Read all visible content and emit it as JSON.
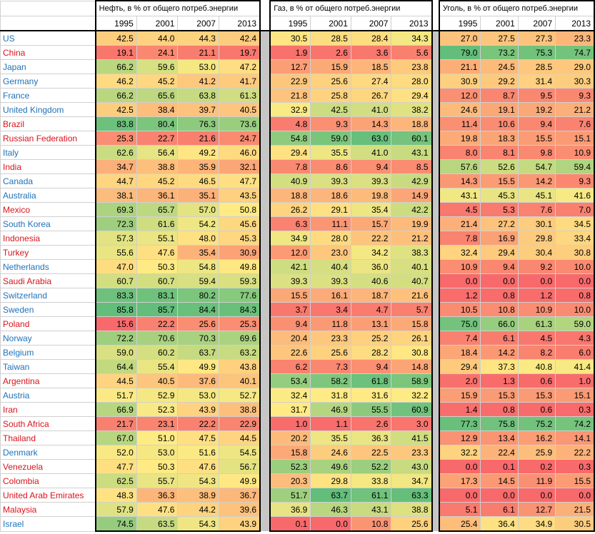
{
  "groups": [
    {
      "title": "Нефть, в % от общего потреб.энергии",
      "years": [
        "1995",
        "2001",
        "2007",
        "2013"
      ]
    },
    {
      "title": "Газ, в % от общего потреб.энергии",
      "years": [
        "1995",
        "2001",
        "2007",
        "2013"
      ]
    },
    {
      "title": "Уголь, в % от общего потреб.энергии",
      "years": [
        "1995",
        "2001",
        "2007",
        "2013"
      ]
    }
  ],
  "colors": {
    "blue": "#1f72b8",
    "red": "#d8141c",
    "scale_low": "#f8696b",
    "scale_mid": "#ffeb84",
    "scale_high": "#63be7b"
  },
  "rows": [
    {
      "country": "US",
      "color": "blue",
      "oil": [
        "42.5",
        "44.0",
        "44.3",
        "42.4"
      ],
      "gas": [
        "30.5",
        "28.5",
        "28.4",
        "34.3"
      ],
      "coal": [
        "27.0",
        "27.5",
        "27.3",
        "23.3"
      ]
    },
    {
      "country": "China",
      "color": "red",
      "oil": [
        "19.1",
        "24.1",
        "21.1",
        "19.7"
      ],
      "gas": [
        "1.9",
        "2.6",
        "3.6",
        "5.6"
      ],
      "coal": [
        "79.0",
        "73.2",
        "75.3",
        "74.7"
      ]
    },
    {
      "country": "Japan",
      "color": "blue",
      "oil": [
        "66.2",
        "59.6",
        "53.0",
        "47.2"
      ],
      "gas": [
        "12.7",
        "15.9",
        "18.5",
        "23.8"
      ],
      "coal": [
        "21.1",
        "24.5",
        "28.5",
        "29.0"
      ]
    },
    {
      "country": "Germany",
      "color": "blue",
      "oil": [
        "46.2",
        "45.2",
        "41.2",
        "41.7"
      ],
      "gas": [
        "22.9",
        "25.6",
        "27.4",
        "28.0"
      ],
      "coal": [
        "30.9",
        "29.2",
        "31.4",
        "30.3"
      ]
    },
    {
      "country": "France",
      "color": "blue",
      "oil": [
        "66.2",
        "65.6",
        "63.8",
        "61.3"
      ],
      "gas": [
        "21.8",
        "25.8",
        "26.7",
        "29.4"
      ],
      "coal": [
        "12.0",
        "8.7",
        "9.5",
        "9.3"
      ]
    },
    {
      "country": "United Kingdom",
      "color": "blue",
      "oil": [
        "42.5",
        "38.4",
        "39.7",
        "40.5"
      ],
      "gas": [
        "32.9",
        "42.5",
        "41.0",
        "38.2"
      ],
      "coal": [
        "24.6",
        "19.1",
        "19.2",
        "21.2"
      ]
    },
    {
      "country": "Brazil",
      "color": "red",
      "oil": [
        "83.8",
        "80.4",
        "76.3",
        "73.6"
      ],
      "gas": [
        "4.8",
        "9.3",
        "14.3",
        "18.8"
      ],
      "coal": [
        "11.4",
        "10.6",
        "9.4",
        "7.6"
      ]
    },
    {
      "country": "Russian Federation",
      "color": "red",
      "oil": [
        "25.3",
        "22.7",
        "21.6",
        "24.7"
      ],
      "gas": [
        "54.8",
        "59.0",
        "63.0",
        "60.1"
      ],
      "coal": [
        "19.8",
        "18.3",
        "15.5",
        "15.1"
      ]
    },
    {
      "country": "Italy",
      "color": "blue",
      "oil": [
        "62.6",
        "56.4",
        "49.2",
        "46.0"
      ],
      "gas": [
        "29.4",
        "35.5",
        "41.0",
        "43.1"
      ],
      "coal": [
        "8.0",
        "8.1",
        "9.8",
        "10.9"
      ]
    },
    {
      "country": "India",
      "color": "red",
      "oil": [
        "34.7",
        "38.8",
        "35.9",
        "32.1"
      ],
      "gas": [
        "7.8",
        "8.6",
        "9.4",
        "8.5"
      ],
      "coal": [
        "57.6",
        "52.6",
        "54.7",
        "59.4"
      ]
    },
    {
      "country": "Canada",
      "color": "blue",
      "oil": [
        "44.7",
        "45.2",
        "46.5",
        "47.7"
      ],
      "gas": [
        "40.9",
        "39.3",
        "39.3",
        "42.9"
      ],
      "coal": [
        "14.3",
        "15.5",
        "14.2",
        "9.3"
      ]
    },
    {
      "country": "Australia",
      "color": "blue",
      "oil": [
        "38.1",
        "36.1",
        "35.1",
        "43.5"
      ],
      "gas": [
        "18.8",
        "18.6",
        "19.8",
        "14.9"
      ],
      "coal": [
        "43.1",
        "45.3",
        "45.1",
        "41.6"
      ]
    },
    {
      "country": "Mexico",
      "color": "red",
      "oil": [
        "69.3",
        "65.7",
        "57.0",
        "50.8"
      ],
      "gas": [
        "26.2",
        "29.1",
        "35.4",
        "42.2"
      ],
      "coal": [
        "4.5",
        "5.3",
        "7.6",
        "7.0"
      ]
    },
    {
      "country": "South Korea",
      "color": "blue",
      "oil": [
        "72.3",
        "61.6",
        "54.2",
        "45.6"
      ],
      "gas": [
        "6.3",
        "11.1",
        "15.7",
        "19.9"
      ],
      "coal": [
        "21.4",
        "27.2",
        "30.1",
        "34.5"
      ]
    },
    {
      "country": "Indonesia",
      "color": "red",
      "oil": [
        "57.3",
        "55.1",
        "48.0",
        "45.3"
      ],
      "gas": [
        "34.9",
        "28.0",
        "22.2",
        "21.2"
      ],
      "coal": [
        "7.8",
        "16.9",
        "29.8",
        "33.4"
      ]
    },
    {
      "country": "Turkey",
      "color": "red",
      "oil": [
        "55.6",
        "47.6",
        "35.4",
        "30.9"
      ],
      "gas": [
        "12.0",
        "23.0",
        "34.2",
        "38.3"
      ],
      "coal": [
        "32.4",
        "29.4",
        "30.4",
        "30.8"
      ]
    },
    {
      "country": "Netherlands",
      "color": "blue",
      "oil": [
        "47.0",
        "50.3",
        "54.8",
        "49.8"
      ],
      "gas": [
        "42.1",
        "40.4",
        "36.0",
        "40.1"
      ],
      "coal": [
        "10.9",
        "9.4",
        "9.2",
        "10.0"
      ]
    },
    {
      "country": "Saudi Arabia",
      "color": "red",
      "oil": [
        "60.7",
        "60.7",
        "59.4",
        "59.3"
      ],
      "gas": [
        "39.3",
        "39.3",
        "40.6",
        "40.7"
      ],
      "coal": [
        "0.0",
        "0.0",
        "0.0",
        "0.0"
      ]
    },
    {
      "country": "Switzerland",
      "color": "blue",
      "oil": [
        "83.3",
        "83.1",
        "80.2",
        "77.6"
      ],
      "gas": [
        "15.5",
        "16.1",
        "18.7",
        "21.6"
      ],
      "coal": [
        "1.2",
        "0.8",
        "1.2",
        "0.8"
      ]
    },
    {
      "country": "Sweden",
      "color": "blue",
      "oil": [
        "85.8",
        "85.7",
        "84.4",
        "84.3"
      ],
      "gas": [
        "3.7",
        "3.4",
        "4.7",
        "5.7"
      ],
      "coal": [
        "10.5",
        "10.8",
        "10.9",
        "10.0"
      ]
    },
    {
      "country": "Poland",
      "color": "red",
      "oil": [
        "15.6",
        "22.2",
        "25.6",
        "25.3"
      ],
      "gas": [
        "9.4",
        "11.8",
        "13.1",
        "15.8"
      ],
      "coal": [
        "75.0",
        "66.0",
        "61.3",
        "59.0"
      ]
    },
    {
      "country": "Norway",
      "color": "blue",
      "oil": [
        "72.2",
        "70.6",
        "70.3",
        "69.6"
      ],
      "gas": [
        "20.4",
        "23.3",
        "25.2",
        "26.1"
      ],
      "coal": [
        "7.4",
        "6.1",
        "4.5",
        "4.3"
      ]
    },
    {
      "country": "Belgium",
      "color": "blue",
      "oil": [
        "59.0",
        "60.2",
        "63.7",
        "63.2"
      ],
      "gas": [
        "22.6",
        "25.6",
        "28.2",
        "30.8"
      ],
      "coal": [
        "18.4",
        "14.2",
        "8.2",
        "6.0"
      ]
    },
    {
      "country": "Taiwan",
      "color": "blue",
      "oil": [
        "64.4",
        "55.4",
        "49.9",
        "43.8"
      ],
      "gas": [
        "6.2",
        "7.3",
        "9.4",
        "14.8"
      ],
      "coal": [
        "29.4",
        "37.3",
        "40.8",
        "41.4"
      ]
    },
    {
      "country": "Argentina",
      "color": "red",
      "oil": [
        "44.5",
        "40.5",
        "37.6",
        "40.1"
      ],
      "gas": [
        "53.4",
        "58.2",
        "61.8",
        "58.9"
      ],
      "coal": [
        "2.0",
        "1.3",
        "0.6",
        "1.0"
      ]
    },
    {
      "country": "Austria",
      "color": "blue",
      "oil": [
        "51.7",
        "52.9",
        "53.0",
        "52.7"
      ],
      "gas": [
        "32.4",
        "31.8",
        "31.6",
        "32.2"
      ],
      "coal": [
        "15.9",
        "15.3",
        "15.3",
        "15.1"
      ]
    },
    {
      "country": "Iran",
      "color": "red",
      "oil": [
        "66.9",
        "52.3",
        "43.9",
        "38.8"
      ],
      "gas": [
        "31.7",
        "46.9",
        "55.5",
        "60.9"
      ],
      "coal": [
        "1.4",
        "0.8",
        "0.6",
        "0.3"
      ]
    },
    {
      "country": "South Africa",
      "color": "red",
      "oil": [
        "21.7",
        "23.1",
        "22.2",
        "22.9"
      ],
      "gas": [
        "1.0",
        "1.1",
        "2.6",
        "3.0"
      ],
      "coal": [
        "77.3",
        "75.8",
        "75.2",
        "74.2"
      ]
    },
    {
      "country": "Thailand",
      "color": "red",
      "oil": [
        "67.0",
        "51.0",
        "47.5",
        "44.5"
      ],
      "gas": [
        "20.2",
        "35.5",
        "36.3",
        "41.5"
      ],
      "coal": [
        "12.9",
        "13.4",
        "16.2",
        "14.1"
      ]
    },
    {
      "country": "Denmark",
      "color": "blue",
      "oil": [
        "52.0",
        "53.0",
        "51.6",
        "54.5"
      ],
      "gas": [
        "15.8",
        "24.6",
        "22.5",
        "23.3"
      ],
      "coal": [
        "32.2",
        "22.4",
        "25.9",
        "22.2"
      ]
    },
    {
      "country": "Venezuela",
      "color": "red",
      "oil": [
        "47.7",
        "50.3",
        "47.6",
        "56.7"
      ],
      "gas": [
        "52.3",
        "49.6",
        "52.2",
        "43.0"
      ],
      "coal": [
        "0.0",
        "0.1",
        "0.2",
        "0.3"
      ]
    },
    {
      "country": "Colombia",
      "color": "red",
      "oil": [
        "62.5",
        "55.7",
        "54.3",
        "49.9"
      ],
      "gas": [
        "20.3",
        "29.8",
        "33.8",
        "34.7"
      ],
      "coal": [
        "17.3",
        "14.5",
        "11.9",
        "15.5"
      ]
    },
    {
      "country": "United Arab Emirates",
      "color": "red",
      "oil": [
        "48.3",
        "36.3",
        "38.9",
        "36.7"
      ],
      "gas": [
        "51.7",
        "63.7",
        "61.1",
        "63.3"
      ],
      "coal": [
        "0.0",
        "0.0",
        "0.0",
        "0.0"
      ]
    },
    {
      "country": "Malaysia",
      "color": "red",
      "oil": [
        "57.9",
        "47.6",
        "44.2",
        "39.6"
      ],
      "gas": [
        "36.9",
        "46.3",
        "43.1",
        "38.8"
      ],
      "coal": [
        "5.1",
        "6.1",
        "12.7",
        "21.5"
      ]
    },
    {
      "country": "Israel",
      "color": "blue",
      "oil": [
        "74.5",
        "63.5",
        "54.3",
        "43.9"
      ],
      "gas": [
        "0.1",
        "0.0",
        "10.8",
        "25.6"
      ],
      "coal": [
        "25.4",
        "36.4",
        "34.9",
        "30.5"
      ]
    }
  ]
}
